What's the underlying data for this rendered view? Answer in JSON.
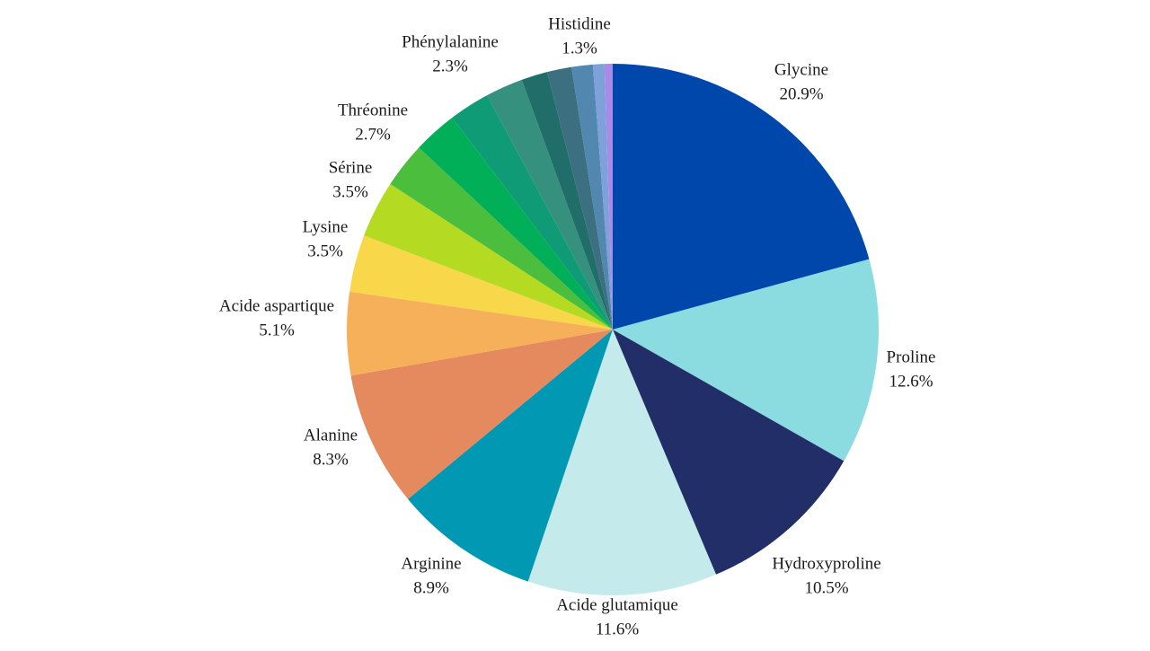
{
  "chart_data": {
    "type": "pie",
    "title": "",
    "start_angle_deg": 0,
    "direction": "clockwise",
    "labels_shown": true,
    "slices": [
      {
        "label": "Glycine",
        "value": 20.9,
        "value_label": "20.9%",
        "color": "#0047AB"
      },
      {
        "label": "Proline",
        "value": 12.6,
        "value_label": "12.6%",
        "color": "#8ADCE0"
      },
      {
        "label": "Hydroxyproline",
        "value": 10.5,
        "value_label": "10.5%",
        "color": "#212E68"
      },
      {
        "label": "Acide glutamique",
        "value": 11.6,
        "value_label": "11.6%",
        "color": "#C4EAEC"
      },
      {
        "label": "Arginine",
        "value": 8.9,
        "value_label": "8.9%",
        "color": "#0098B3"
      },
      {
        "label": "Alanine",
        "value": 8.3,
        "value_label": "8.3%",
        "color": "#E58A5E"
      },
      {
        "label": "Acide aspartique",
        "value": 5.1,
        "value_label": "5.1%",
        "color": "#F6B05A"
      },
      {
        "label": "Lysine",
        "value": 3.5,
        "value_label": "3.5%",
        "color": "#F9D74A"
      },
      {
        "label": "Sérine",
        "value": 3.5,
        "value_label": "3.5%",
        "color": "#B4DA22"
      },
      {
        "label": "",
        "value": 2.8,
        "value_label": "",
        "color": "#4BBE3E"
      },
      {
        "label": "Thréonine",
        "value": 2.7,
        "value_label": "2.7%",
        "color": "#00AF58"
      },
      {
        "label": "",
        "value": 2.5,
        "value_label": "",
        "color": "#0E9B75"
      },
      {
        "label": "Phénylalanine",
        "value": 2.3,
        "value_label": "2.3%",
        "color": "#35907E"
      },
      {
        "label": "",
        "value": 1.6,
        "value_label": "",
        "color": "#206D6A"
      },
      {
        "label": "",
        "value": 1.5,
        "value_label": "",
        "color": "#3C6F80"
      },
      {
        "label": "Histidine",
        "value": 1.3,
        "value_label": "1.3%",
        "color": "#5287B0"
      },
      {
        "label": "",
        "value": 0.7,
        "value_label": "",
        "color": "#7FA1D9"
      },
      {
        "label": "",
        "value": 0.5,
        "value_label": "",
        "color": "#A88AE8"
      }
    ]
  }
}
